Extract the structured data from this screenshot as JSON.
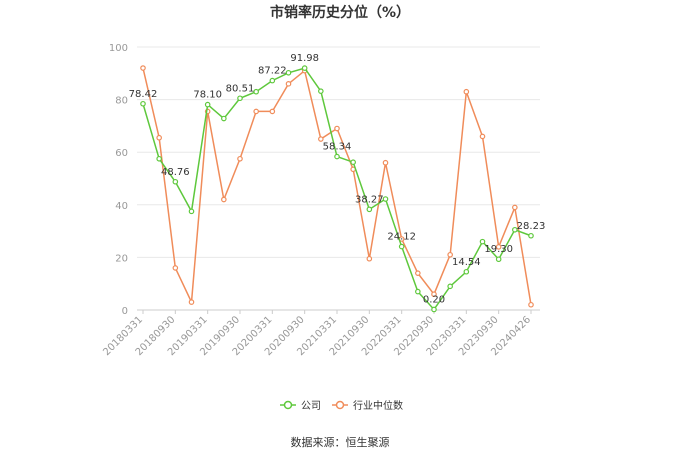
{
  "chart_data": {
    "type": "line",
    "title": "市销率历史分位（%）",
    "source": "数据来源：恒生聚源",
    "ylim": [
      0,
      100
    ],
    "yticks": [
      0,
      20,
      40,
      60,
      80,
      100
    ],
    "grid": true,
    "legend_position": "bottom",
    "categories": [
      "20180331",
      "20180630",
      "20180930",
      "20181231",
      "20190331",
      "20190630",
      "20190930",
      "20191231",
      "20200331",
      "20200630",
      "20200930",
      "20201231",
      "20210331",
      "20210630",
      "20210930",
      "20211231",
      "20220331",
      "20220630",
      "20220930",
      "20221231",
      "20230331",
      "20230630",
      "20230930",
      "20231231",
      "20240426"
    ],
    "tick_labels": [
      "20180331",
      "20180930",
      "20190331",
      "20190930",
      "20200331",
      "20200930",
      "20210331",
      "20210930",
      "20220331",
      "20220930",
      "20230331",
      "20230930",
      "20240426"
    ],
    "series": [
      {
        "name": "公司",
        "color": "#5ec83c",
        "values": [
          78.42,
          57.5,
          48.76,
          37.5,
          78.1,
          72.8,
          80.51,
          83.0,
          87.22,
          90.2,
          91.98,
          83.2,
          58.34,
          56.2,
          38.27,
          42.2,
          24.12,
          7.0,
          0.2,
          9.0,
          14.54,
          26.0,
          19.3,
          30.5,
          28.23
        ],
        "labels": [
          "78.42",
          "",
          "48.76",
          "",
          "78.10",
          "",
          "80.51",
          "",
          "87.22",
          "",
          "91.98",
          "",
          "58.34",
          "",
          "38.27",
          "",
          "24.12",
          "",
          "0.20",
          "",
          "14.54",
          "",
          "19.30",
          "",
          "28.23"
        ]
      },
      {
        "name": "行业中位数",
        "color": "#f08c5a",
        "values": [
          92.0,
          65.5,
          16.0,
          3.0,
          75.5,
          42.0,
          57.5,
          75.5,
          75.5,
          86.0,
          91.0,
          65.0,
          69.0,
          53.5,
          19.5,
          56.0,
          27.0,
          14.0,
          6.0,
          21.0,
          83.0,
          66.0,
          24.0,
          39.0,
          2.0
        ]
      }
    ]
  }
}
